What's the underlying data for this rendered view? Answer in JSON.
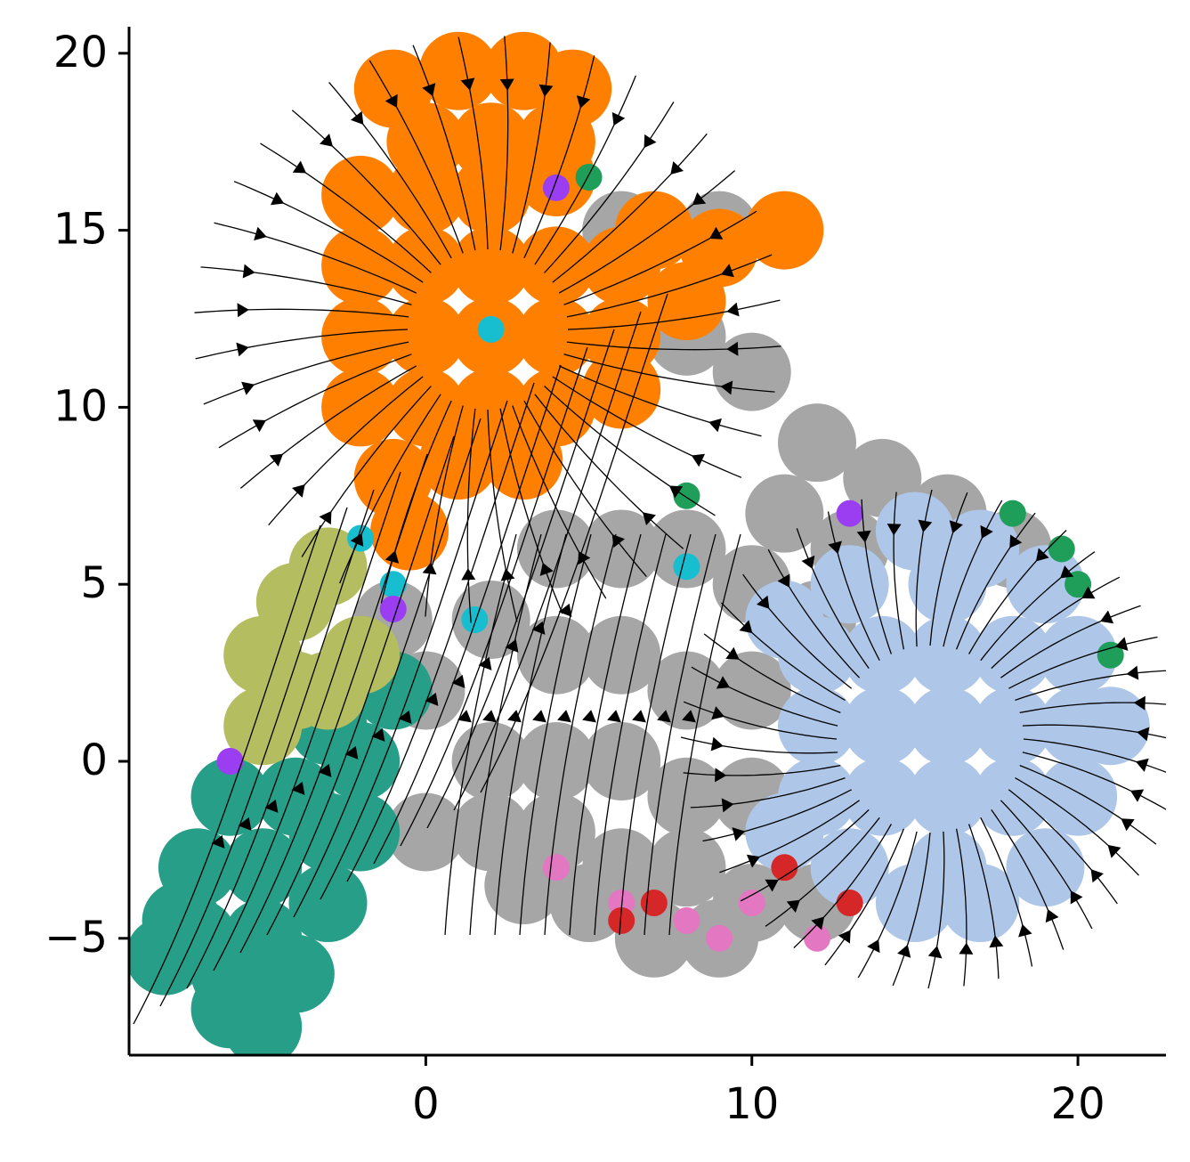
{
  "chart_data": {
    "type": "scatter",
    "xlim": [
      -9.1,
      22.7
    ],
    "ylim": [
      -8.3,
      20.75
    ],
    "xticks": [
      0,
      10,
      20
    ],
    "yticks": [
      {
        "value": -5,
        "label": "−5"
      },
      0,
      5,
      10,
      15,
      20
    ],
    "series": [
      {
        "color": "#a6a6a6",
        "x": [
          6,
          9,
          8,
          10,
          12,
          14,
          16,
          18,
          4,
          6,
          8,
          10,
          12,
          2,
          4,
          6,
          8,
          10,
          2,
          4,
          6,
          8,
          10,
          0,
          2,
          4,
          6,
          8,
          10,
          3,
          12,
          5,
          7,
          9,
          0,
          -1,
          13,
          11
        ],
        "y": [
          15,
          15,
          12,
          11,
          9,
          8,
          7,
          6,
          6,
          6,
          6,
          5,
          4,
          4,
          3,
          3,
          2,
          2,
          0,
          0,
          0,
          -1,
          -1,
          -2,
          -2,
          -2,
          -3,
          -3,
          -4,
          -3.5,
          -4,
          -4,
          -5,
          -5,
          2,
          4,
          6,
          7
        ]
      },
      {
        "color": "#ff8000",
        "x": [
          -1,
          1,
          3,
          4.5,
          0,
          2,
          4,
          -2,
          0,
          2,
          4,
          -2,
          0,
          2,
          4,
          6,
          7,
          -2,
          0,
          2,
          4,
          6,
          -2,
          0,
          2,
          4,
          6,
          -1,
          1,
          3,
          -0.5,
          9,
          11,
          8
        ],
        "y": [
          19,
          19.5,
          19.5,
          19,
          17.5,
          17.5,
          17.5,
          16,
          16,
          16,
          16.5,
          14,
          14,
          14,
          14,
          14,
          15,
          12,
          12,
          12,
          12,
          12,
          10,
          10,
          10,
          10,
          10.5,
          8,
          8.5,
          8.5,
          6.5,
          14.5,
          15,
          13
        ]
      },
      {
        "color": "#aec7e8",
        "x": [
          16,
          14,
          18,
          16,
          16,
          14,
          18,
          14,
          18,
          12,
          20,
          16,
          16,
          12,
          12,
          20,
          20,
          13,
          19,
          13,
          19,
          11,
          15,
          17,
          21,
          11,
          15,
          17
        ],
        "y": [
          1,
          1,
          1,
          3,
          -1,
          3,
          3,
          -1,
          -1,
          1,
          1,
          5,
          -3,
          3,
          -1,
          3,
          -1,
          5,
          5,
          -3,
          -3,
          4,
          6.5,
          6,
          1,
          -2,
          -4,
          -4
        ]
      },
      {
        "color": "#279e88",
        "x": [
          -7,
          -5,
          -3,
          -7,
          -5,
          -3,
          -7.5,
          -6,
          -4,
          -6,
          -4,
          -2,
          -2,
          -1,
          -3,
          -6,
          -8,
          -5
        ],
        "y": [
          -5,
          -5,
          -4,
          -3,
          -3,
          -2,
          -4.5,
          -7,
          -6,
          -1,
          -1,
          0,
          -2,
          2,
          1,
          -6,
          -5.5,
          -7.5
        ]
      },
      {
        "color": "#b5bd61",
        "x": [
          -5,
          -4,
          -3,
          -5,
          -3,
          -4,
          -2
        ],
        "y": [
          3,
          4.5,
          5.5,
          1,
          2,
          2,
          3
        ]
      },
      {
        "color": "#e377c2",
        "x": [
          4,
          6,
          8,
          9,
          10,
          12
        ],
        "y": [
          -3,
          -4,
          -4.5,
          -5,
          -4,
          -5
        ]
      },
      {
        "color": "#d62728",
        "x": [
          6,
          7,
          11,
          13
        ],
        "y": [
          -4.5,
          -4,
          -3,
          -4
        ]
      },
      {
        "color": "#1f9e5a",
        "x": [
          18,
          19.5,
          20,
          21,
          5,
          8
        ],
        "y": [
          7,
          6,
          5,
          3,
          16.5,
          7.5
        ]
      },
      {
        "color": "#17becf",
        "x": [
          2,
          -2,
          -1,
          8,
          1.5
        ],
        "y": [
          12.2,
          6.3,
          5,
          5.5,
          4
        ]
      },
      {
        "color": "#9b3df0",
        "x": [
          4,
          -1,
          -6,
          13
        ],
        "y": [
          16.2,
          4.3,
          0,
          7
        ]
      }
    ]
  }
}
